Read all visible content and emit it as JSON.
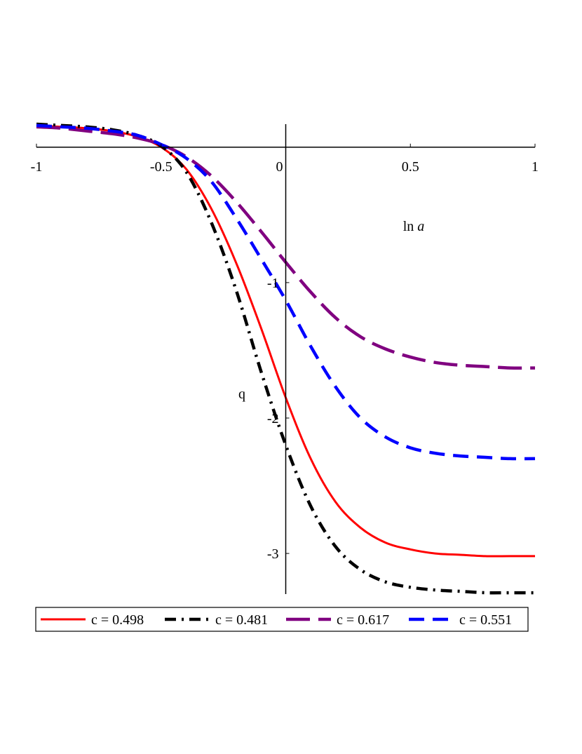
{
  "chart_data": {
    "type": "line",
    "title": "",
    "xlabel": "ln a",
    "ylabel": "q",
    "xlim": [
      -1,
      1
    ],
    "ylim": [
      -3.3,
      0.17
    ],
    "grid": false,
    "legend_position": "bottom",
    "x_ticks": [
      {
        "value": -1,
        "label": "-1"
      },
      {
        "value": -0.5,
        "label": "-0.5"
      },
      {
        "value": 0,
        "label": "0"
      },
      {
        "value": 0.5,
        "label": "0.5"
      },
      {
        "value": 1,
        "label": "1"
      }
    ],
    "y_ticks": [
      {
        "value": -1,
        "label": "-1"
      },
      {
        "value": -2,
        "label": "-2"
      },
      {
        "value": -3,
        "label": "-3"
      }
    ],
    "series": [
      {
        "name": "c = 0.498",
        "color": "#ff0000",
        "style": "solid",
        "x": [
          -1,
          -0.9,
          -0.8,
          -0.7,
          -0.6,
          -0.5,
          -0.4,
          -0.3,
          -0.2,
          -0.1,
          0,
          0.1,
          0.2,
          0.3,
          0.4,
          0.5,
          0.6,
          0.7,
          0.8,
          0.9,
          1
        ],
        "values": [
          0.16,
          0.15,
          0.14,
          0.12,
          0.08,
          0.0,
          -0.16,
          -0.45,
          -0.85,
          -1.33,
          -1.85,
          -2.3,
          -2.62,
          -2.81,
          -2.92,
          -2.97,
          -3.0,
          -3.01,
          -3.02,
          -3.02,
          -3.02
        ]
      },
      {
        "name": "c = 0.481",
        "color": "#000000",
        "style": "dashdot",
        "x": [
          -1,
          -0.9,
          -0.8,
          -0.7,
          -0.6,
          -0.5,
          -0.4,
          -0.3,
          -0.2,
          -0.1,
          0,
          0.1,
          0.2,
          0.3,
          0.4,
          0.5,
          0.6,
          0.7,
          0.8,
          0.9,
          1
        ],
        "values": [
          0.17,
          0.16,
          0.15,
          0.13,
          0.09,
          0.01,
          -0.18,
          -0.55,
          -1.05,
          -1.65,
          -2.2,
          -2.65,
          -2.95,
          -3.12,
          -3.21,
          -3.25,
          -3.27,
          -3.28,
          -3.29,
          -3.29,
          -3.29
        ]
      },
      {
        "name": "c = 0.617",
        "color": "#800080",
        "style": "longdash",
        "x": [
          -1,
          -0.9,
          -0.8,
          -0.7,
          -0.6,
          -0.5,
          -0.4,
          -0.3,
          -0.2,
          -0.1,
          0,
          0.1,
          0.2,
          0.3,
          0.4,
          0.5,
          0.6,
          0.7,
          0.8,
          0.9,
          1
        ],
        "values": [
          0.15,
          0.14,
          0.12,
          0.1,
          0.07,
          0.02,
          -0.07,
          -0.21,
          -0.4,
          -0.62,
          -0.85,
          -1.07,
          -1.26,
          -1.4,
          -1.49,
          -1.55,
          -1.59,
          -1.61,
          -1.62,
          -1.63,
          -1.63
        ]
      },
      {
        "name": "c = 0.551",
        "color": "#0000ff",
        "style": "dash",
        "x": [
          -1,
          -0.9,
          -0.8,
          -0.7,
          -0.6,
          -0.5,
          -0.4,
          -0.3,
          -0.2,
          -0.1,
          0,
          0.1,
          0.2,
          0.3,
          0.4,
          0.5,
          0.6,
          0.7,
          0.8,
          0.9,
          1
        ],
        "values": [
          0.16,
          0.15,
          0.14,
          0.12,
          0.09,
          0.02,
          -0.08,
          -0.25,
          -0.52,
          -0.82,
          -1.13,
          -1.47,
          -1.77,
          -2.0,
          -2.14,
          -2.22,
          -2.26,
          -2.28,
          -2.29,
          -2.3,
          -2.3
        ]
      }
    ]
  }
}
